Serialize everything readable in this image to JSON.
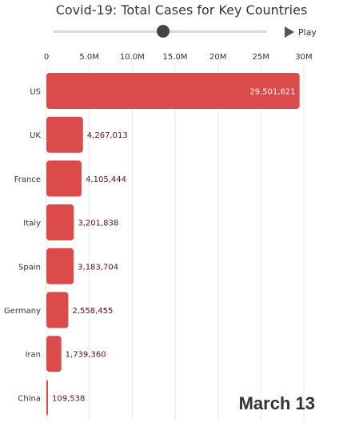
{
  "page": {
    "title": "Covid-19: Total Cases for Key Countries",
    "play_label": "Play",
    "date_label": "March 13"
  },
  "colors": {
    "bar": "#dc4b4b",
    "label_inside": "#ffffff",
    "label_outside": "#5a1010",
    "slider_track": "#d4dcdf",
    "slider_thumb": "#444444"
  },
  "chart_data": {
    "type": "bar",
    "orientation": "horizontal",
    "title": "Covid-19: Total Cases for Key Countries",
    "categories": [
      "US",
      "UK",
      "France",
      "Italy",
      "Spain",
      "Germany",
      "Iran",
      "China"
    ],
    "values": [
      29501621,
      4267013,
      4105444,
      3201838,
      3183704,
      2558455,
      1739360,
      109538
    ],
    "value_labels": [
      "29,501,621",
      "4,267,013",
      "4,105,444",
      "3,201,838",
      "3,183,704",
      "2,558,455",
      "1,739,360",
      "109,538"
    ],
    "x_ticks": [
      0,
      5000000,
      10000000,
      15000000,
      20000000,
      25000000,
      30000000
    ],
    "x_tick_labels": [
      "0",
      "5.0M",
      "10.0M",
      "15.0M",
      "20M",
      "25M",
      "30M"
    ],
    "xlim": [
      0,
      30000000
    ],
    "x_axis_position": "top",
    "grid": true,
    "legend": "none"
  }
}
